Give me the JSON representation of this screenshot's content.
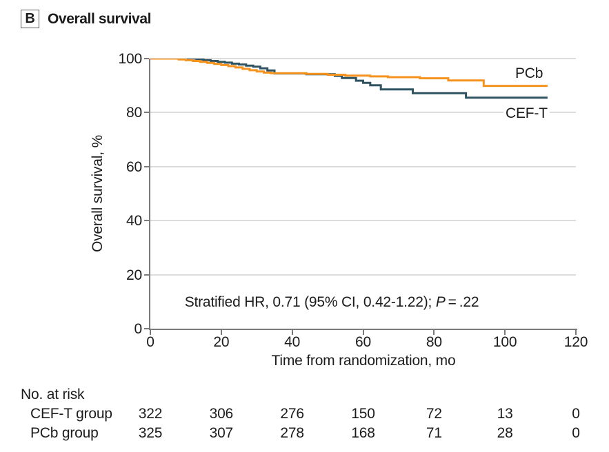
{
  "panel": {
    "label": "B",
    "title": "Overall survival"
  },
  "colors": {
    "pcb_line": "#F6931F",
    "ceft_line": "#2F5360",
    "gridline": "#DCDCDC",
    "axis": "#7A7A7A",
    "text": "#1C1C1C"
  },
  "chart_data": {
    "type": "line",
    "subtype": "kaplan-meier-step",
    "title": "Overall survival",
    "xlabel": "Time from randomization, mo",
    "ylabel": "Overall survival, %",
    "xlim": [
      0,
      120
    ],
    "ylim": [
      0,
      100
    ],
    "xticks": [
      0,
      20,
      40,
      60,
      80,
      100,
      120
    ],
    "yticks": [
      0,
      20,
      40,
      60,
      80,
      100
    ],
    "grid": "horizontal",
    "legend_position": "end-of-line-labels",
    "annotation": "Stratified HR, 0.71 (95% CI, 0.42-1.22); P = .22",
    "annotation_parts": {
      "before_p": "Stratified HR, 0.71 (95% CI, 0.42-1.22); ",
      "p_symbol": "P",
      "p_value": " = .22"
    },
    "series": [
      {
        "name": "CEF-T",
        "color": "#2F5360",
        "end_time": 112,
        "points": [
          [
            0,
            100
          ],
          [
            13,
            99.7
          ],
          [
            15,
            99.4
          ],
          [
            17,
            99.1
          ],
          [
            19,
            98.8
          ],
          [
            21,
            98.5
          ],
          [
            23,
            98.1
          ],
          [
            25,
            97.8
          ],
          [
            27,
            97.4
          ],
          [
            29,
            97.0
          ],
          [
            31,
            96.4
          ],
          [
            33,
            95.6
          ],
          [
            35,
            94.5
          ],
          [
            44,
            94.2
          ],
          [
            52,
            93.6
          ],
          [
            54,
            92.8
          ],
          [
            58,
            91.8
          ],
          [
            60,
            91.0
          ],
          [
            62,
            90.1
          ],
          [
            65,
            88.6
          ],
          [
            74,
            87.2
          ],
          [
            89,
            85.5
          ]
        ]
      },
      {
        "name": "PCb",
        "color": "#F6931F",
        "end_time": 112,
        "points": [
          [
            0,
            100
          ],
          [
            8,
            99.7
          ],
          [
            10,
            99.4
          ],
          [
            12,
            99.1
          ],
          [
            14,
            98.8
          ],
          [
            16,
            98.4
          ],
          [
            18,
            98.0
          ],
          [
            20,
            97.6
          ],
          [
            22,
            97.2
          ],
          [
            24,
            96.7
          ],
          [
            26,
            96.2
          ],
          [
            28,
            95.7
          ],
          [
            30,
            95.2
          ],
          [
            32,
            94.8
          ],
          [
            34,
            94.6
          ],
          [
            44,
            94.3
          ],
          [
            50,
            94.0
          ],
          [
            55,
            93.7
          ],
          [
            62,
            93.4
          ],
          [
            67,
            93.1
          ],
          [
            76,
            92.7
          ],
          [
            84,
            91.9
          ],
          [
            94,
            89.9
          ]
        ]
      }
    ],
    "at_risk": {
      "title": "No. at risk",
      "times": [
        0,
        20,
        40,
        60,
        80,
        100,
        120
      ],
      "rows": [
        {
          "label": "CEF-T group",
          "values": [
            322,
            306,
            276,
            150,
            72,
            13,
            0
          ]
        },
        {
          "label": "PCb group",
          "values": [
            325,
            307,
            278,
            168,
            71,
            28,
            0
          ]
        }
      ]
    }
  }
}
